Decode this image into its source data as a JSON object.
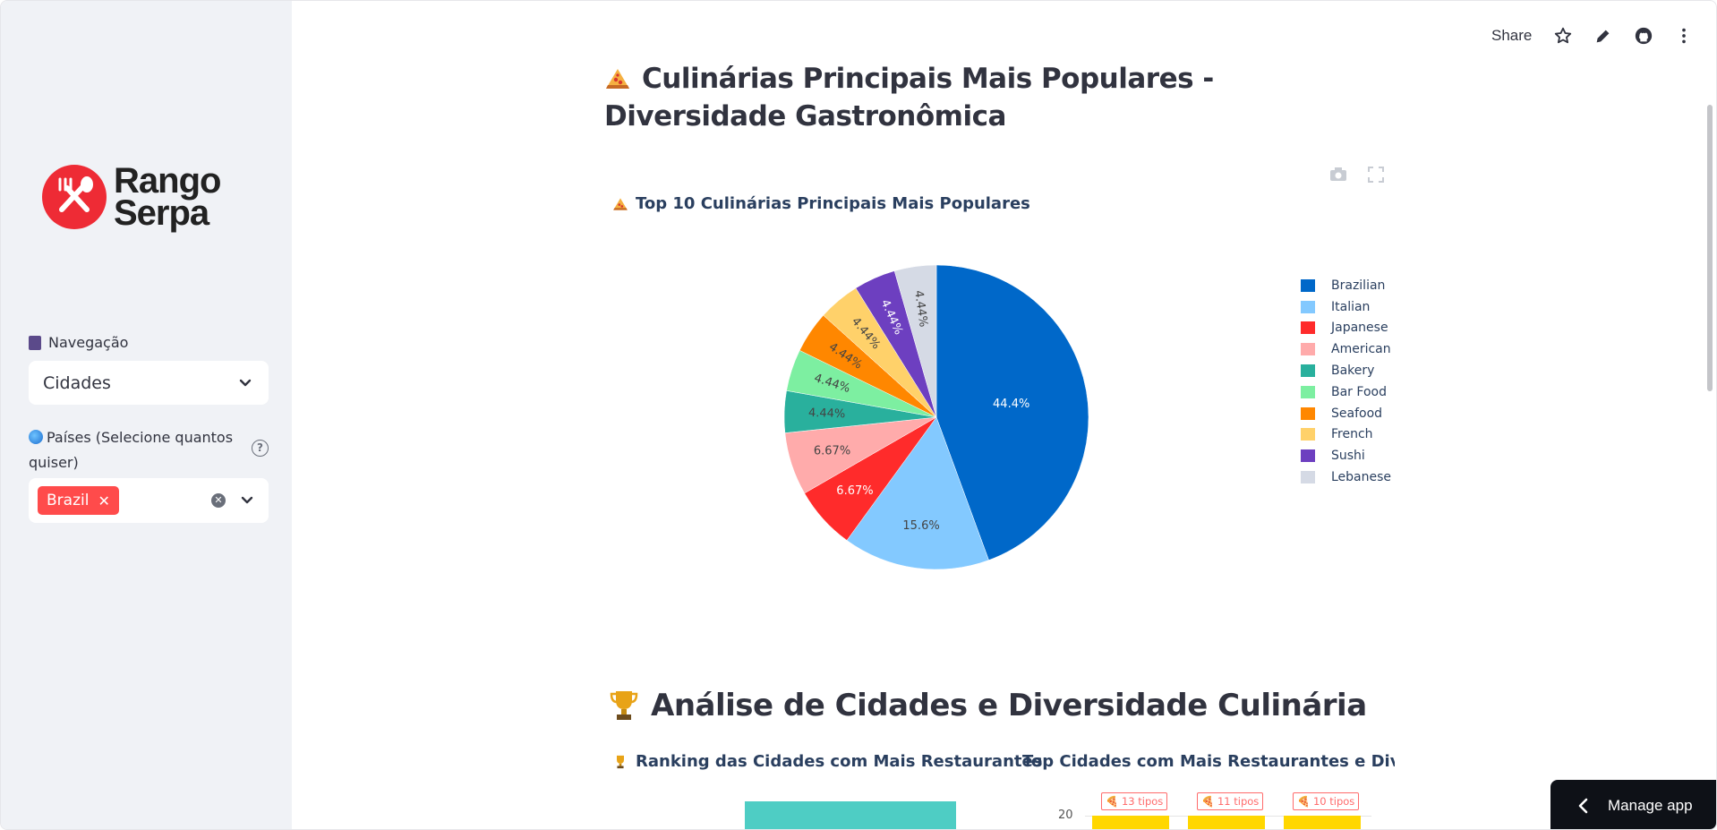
{
  "sidebar": {
    "logo_line1": "Rango",
    "logo_line2": "Serpa",
    "nav_label": "Navegação",
    "nav_selected": "Cidades",
    "countries_label": "Países (Selecione quantos quiser)",
    "countries_selected": [
      "Brazil"
    ]
  },
  "header": {
    "share_label": "Share"
  },
  "main": {
    "title": "Culinárias Principais Mais Populares - Diversidade Gastronômica",
    "section2_title": "Análise de Cidades e Diversidade Culinária",
    "sub1": "Ranking das Cidades com Mais Restaurantes",
    "sub2": "Top Cidades com Mais Restaurantes e Diversidade",
    "bar_y_tick": "20",
    "bar_labels": [
      "🍕 13 tipos",
      "🍕 11 tipos",
      "🍕 10 tipos"
    ]
  },
  "chart_data": {
    "type": "pie",
    "title": "Top 10 Culinárias Principais Mais Populares",
    "categories": [
      "Brazilian",
      "Italian",
      "Japanese",
      "American",
      "Bakery",
      "Bar Food",
      "Seafood",
      "French",
      "Sushi",
      "Lebanese"
    ],
    "values": [
      44.4,
      15.6,
      6.67,
      6.67,
      4.44,
      4.44,
      4.44,
      4.44,
      4.44,
      4.44
    ],
    "labels": [
      "44.4%",
      "15.6%",
      "6.67%",
      "6.67%",
      "4.44%",
      "4.44%",
      "4.44%",
      "4.44%",
      "4.44%",
      "4.44%"
    ],
    "colors": [
      "#0068c9",
      "#83c9ff",
      "#ff2b2b",
      "#ffabab",
      "#29b09d",
      "#7defa1",
      "#ff8700",
      "#ffd16a",
      "#6d3fc0",
      "#d5dae5"
    ],
    "label_colors": [
      "#ffffff",
      "#444444",
      "#ffffff",
      "#444444",
      "#444444",
      "#444444",
      "#444444",
      "#444444",
      "#ffffff",
      "#444444"
    ],
    "legend_position": "right"
  },
  "manage_app": "Manage app"
}
